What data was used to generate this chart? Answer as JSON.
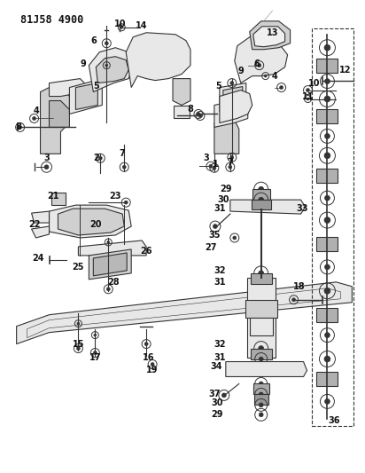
{
  "title": "81J58 4900",
  "bg_color": "#ffffff",
  "line_color": "#333333",
  "label_color": "#111111",
  "title_fontsize": 8.5,
  "label_fontsize": 7,
  "fig_width": 4.12,
  "fig_height": 5.33,
  "dpi": 100
}
